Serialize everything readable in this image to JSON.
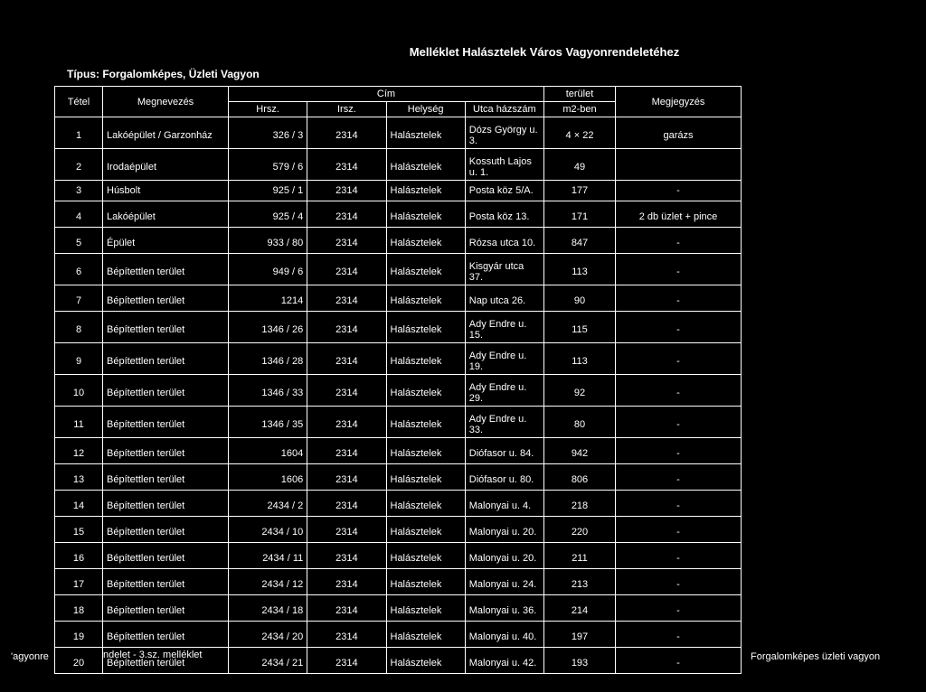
{
  "title": "Melléklet Halásztelek Város Vagyonrendeletéhez",
  "type_label": "Típus:",
  "type_value": "Forgalomképes, Üzleti Vagyon",
  "headers": {
    "tetel": "Tétel",
    "megnevezes": "Megnevezés",
    "cim": "Cím",
    "hrsz": "Hrsz.",
    "irsz": "Irsz.",
    "helyseg": "Helység",
    "utca": "Utca házszám",
    "terulet_top": "terület",
    "terulet_bot": "m2-ben",
    "megj": "Megjegyzés"
  },
  "left_overlay": "'agyonre",
  "row20_overlay": "ndelet - 3.sz. melléklet",
  "side_note": "Forgalomképes üzleti vagyon",
  "rows": [
    {
      "t": "1",
      "m": "Lakóépület / Garzonház",
      "h": "326 / 3",
      "i": "2314",
      "hs": "Halásztelek",
      "u": "Dózs György u. 3.",
      "ter": "4 × 22",
      "mj": "garázs",
      "gap": true
    },
    {
      "t": "2",
      "m": "Irodaépület",
      "h": "579 / 6",
      "i": "2314",
      "hs": "Halásztelek",
      "u": "Kossuth Lajos u. 1.",
      "ter": "49",
      "mj": "",
      "gap": true
    },
    {
      "t": "3",
      "m": "Húsbolt",
      "h": "925 / 1",
      "i": "2314",
      "hs": "Halásztelek",
      "u": "Posta köz 5/A.",
      "ter": "177",
      "mj": "-"
    },
    {
      "t": "4",
      "m": "Lakóépület",
      "h": "925 / 4",
      "i": "2314",
      "hs": "Halásztelek",
      "u": "Posta köz 13.",
      "ter": "171",
      "mj": "2 db üzlet + pince",
      "gap": true
    },
    {
      "t": "5",
      "m": "Épület",
      "h": "933 / 80",
      "i": "2314",
      "hs": "Halásztelek",
      "u": "Rózsa utca 10.",
      "ter": "847",
      "mj": "-",
      "gap": true
    },
    {
      "t": "6",
      "m": "Bépítettlen terület",
      "h": "949 / 6",
      "i": "2314",
      "hs": "Halásztelek",
      "u": "Kisgyár utca 37.",
      "ter": "113",
      "mj": "-",
      "gap": true
    },
    {
      "t": "7",
      "m": "Bépítettlen terület",
      "h": "1214",
      "i": "2314",
      "hs": "Halásztelek",
      "u": "Nap utca 26.",
      "ter": "90",
      "mj": "-",
      "gap": true
    },
    {
      "t": "8",
      "m": "Bépítettlen terület",
      "h": "1346 / 26",
      "i": "2314",
      "hs": "Halásztelek",
      "u": "Ady Endre u. 15.",
      "ter": "115",
      "mj": "-",
      "gap": true
    },
    {
      "t": "9",
      "m": "Bépítettlen terület",
      "h": "1346 / 28",
      "i": "2314",
      "hs": "Halásztelek",
      "u": "Ady Endre u. 19.",
      "ter": "113",
      "mj": "-",
      "gap": true
    },
    {
      "t": "10",
      "m": "Bépítettlen terület",
      "h": "1346 / 33",
      "i": "2314",
      "hs": "Halásztelek",
      "u": "Ady Endre u. 29.",
      "ter": "92",
      "mj": "-",
      "gap": true
    },
    {
      "t": "11",
      "m": "Bépítettlen terület",
      "h": "1346 / 35",
      "i": "2314",
      "hs": "Halásztelek",
      "u": "Ady Endre u. 33.",
      "ter": "80",
      "mj": "-",
      "gap": true
    },
    {
      "t": "12",
      "m": "Bépítettlen terület",
      "h": "1604",
      "i": "2314",
      "hs": "Halásztelek",
      "u": "Diófasor u. 84.",
      "ter": "942",
      "mj": "-",
      "gap": true
    },
    {
      "t": "13",
      "m": "Bépítettlen terület",
      "h": "1606",
      "i": "2314",
      "hs": "Halásztelek",
      "u": "Diófasor u. 80.",
      "ter": "806",
      "mj": "-",
      "gap": true
    },
    {
      "t": "14",
      "m": "Bépítettlen terület",
      "h": "2434 / 2",
      "i": "2314",
      "hs": "Halásztelek",
      "u": "Malonyai u. 4.",
      "ter": "218",
      "mj": "-",
      "gap": true
    },
    {
      "t": "15",
      "m": "Bépítettlen terület",
      "h": "2434 / 10",
      "i": "2314",
      "hs": "Halásztelek",
      "u": "Malonyai u. 20.",
      "ter": "220",
      "mj": "-",
      "gap": true
    },
    {
      "t": "16",
      "m": "Bépítettlen terület",
      "h": "2434 / 11",
      "i": "2314",
      "hs": "Halásztelek",
      "u": "Malonyai u. 20.",
      "ter": "211",
      "mj": "-",
      "gap": true
    },
    {
      "t": "17",
      "m": "Bépítettlen terület",
      "h": "2434 / 12",
      "i": "2314",
      "hs": "Halásztelek",
      "u": "Malonyai u. 24.",
      "ter": "213",
      "mj": "-",
      "gap": true
    },
    {
      "t": "18",
      "m": "Bépítettlen terület",
      "h": "2434 / 18",
      "i": "2314",
      "hs": "Halásztelek",
      "u": "Malonyai u. 36.",
      "ter": "214",
      "mj": "-",
      "gap": true
    },
    {
      "t": "19",
      "m": "Bépítettlen terület",
      "h": "2434 / 20",
      "i": "2314",
      "hs": "Halásztelek",
      "u": "Malonyai u. 40.",
      "ter": "197",
      "mj": "-",
      "gap": true
    },
    {
      "t": "20",
      "m": "Bépítettlen terület",
      "h": "2434 / 21",
      "i": "2314",
      "hs": "Halásztelek",
      "u": "Malonyai u. 42.",
      "ter": "193",
      "mj": "-",
      "gap": true,
      "overlay": true
    }
  ]
}
